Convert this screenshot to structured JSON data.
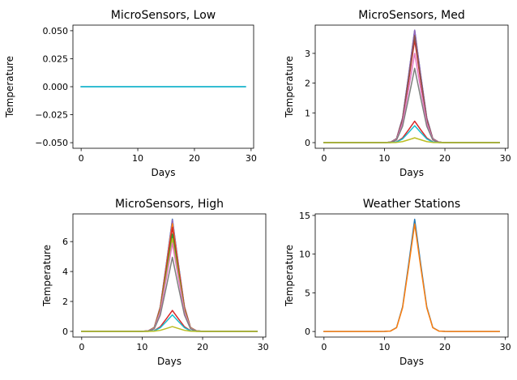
{
  "figure": {
    "background": "#ffffff"
  },
  "palette": [
    "#1f77b4",
    "#ff7f0e",
    "#2ca02c",
    "#d62728",
    "#9467bd",
    "#8c564b",
    "#e377c2",
    "#7f7f7f",
    "#bcbd22",
    "#17becf"
  ],
  "chart_data": [
    {
      "type": "line",
      "title": "MicroSensors, Low",
      "xlabel": "Days",
      "ylabel": "Temperature",
      "xlim": [
        -1.45,
        30.45
      ],
      "ylim": [
        -0.055,
        0.055
      ],
      "xticks": [
        0,
        10,
        20,
        30
      ],
      "yticks": [
        -0.05,
        -0.025,
        0.0,
        0.025,
        0.05
      ],
      "ytick_labels": [
        "−0.050",
        "−0.025",
        "0.000",
        "0.025",
        "0.050"
      ],
      "x_range": [
        0,
        29
      ],
      "series": [
        {
          "color_index": 0,
          "values": [
            0,
            0,
            0,
            0,
            0,
            0,
            0,
            0,
            0,
            0,
            0,
            0,
            0,
            0,
            0,
            0,
            0,
            0,
            0,
            0,
            0,
            0,
            0,
            0,
            0,
            0,
            0,
            0,
            0,
            0
          ]
        },
        {
          "color_index": 9,
          "values": [
            0,
            0,
            0,
            0,
            0,
            0,
            0,
            0,
            0,
            0,
            0,
            0,
            0,
            0,
            0,
            0,
            0,
            0,
            0,
            0,
            0,
            0,
            0,
            0,
            0,
            0,
            0,
            0,
            0,
            0
          ]
        }
      ]
    },
    {
      "type": "line",
      "title": "MicroSensors, Med",
      "xlabel": "Days",
      "ylabel": "Temperature",
      "xlim": [
        -1.45,
        30.45
      ],
      "ylim": [
        -0.19,
        3.95
      ],
      "xticks": [
        0,
        10,
        20,
        30
      ],
      "yticks": [
        0,
        1,
        2,
        3
      ],
      "ytick_labels": [
        "0",
        "1",
        "2",
        "3"
      ],
      "x_range": [
        0,
        29
      ],
      "profile": [
        0,
        0,
        0,
        0,
        0,
        0,
        0,
        0,
        0,
        0,
        0.0005,
        0.004,
        0.035,
        0.22,
        0.6,
        1.0,
        0.6,
        0.22,
        0.035,
        0.004,
        0.0005,
        0,
        0,
        0,
        0,
        0,
        0,
        0,
        0,
        0
      ],
      "series": [
        {
          "color_index": 0,
          "peak": 3.78
        },
        {
          "color_index": 1,
          "peak": 3.68
        },
        {
          "color_index": 2,
          "peak": 3.52
        },
        {
          "color_index": 3,
          "peak": 3.45
        },
        {
          "color_index": 4,
          "peak": 3.78
        },
        {
          "color_index": 5,
          "peak": 3.6
        },
        {
          "color_index": 6,
          "peak": 3.0
        },
        {
          "color_index": 7,
          "peak": 2.5
        },
        {
          "color_index": 3,
          "peak": 0.72
        },
        {
          "color_index": 9,
          "peak": 0.57
        },
        {
          "color_index": 8,
          "peak": 0.16
        }
      ]
    },
    {
      "type": "line",
      "title": "MicroSensors, High",
      "xlabel": "Days",
      "ylabel": "Temperature",
      "xlim": [
        -1.45,
        30.45
      ],
      "ylim": [
        -0.38,
        7.85
      ],
      "xticks": [
        0,
        10,
        20,
        30
      ],
      "yticks": [
        0,
        2,
        4,
        6
      ],
      "ytick_labels": [
        "0",
        "2",
        "4",
        "6"
      ],
      "x_range": [
        0,
        29
      ],
      "profile": [
        0,
        0,
        0,
        0,
        0,
        0,
        0,
        0,
        0,
        0,
        0.0005,
        0.004,
        0.035,
        0.22,
        0.6,
        1.0,
        0.6,
        0.22,
        0.035,
        0.004,
        0.0005,
        0,
        0,
        0,
        0,
        0,
        0,
        0,
        0,
        0
      ],
      "series": [
        {
          "color_index": 0,
          "peak": 7.5
        },
        {
          "color_index": 4,
          "peak": 7.45
        },
        {
          "color_index": 1,
          "peak": 7.2
        },
        {
          "color_index": 3,
          "peak": 6.95
        },
        {
          "color_index": 2,
          "peak": 6.5
        },
        {
          "color_index": 8,
          "peak": 6.2
        },
        {
          "color_index": 6,
          "peak": 5.9
        },
        {
          "color_index": 7,
          "peak": 4.95
        },
        {
          "color_index": 3,
          "peak": 1.4
        },
        {
          "color_index": 9,
          "peak": 1.1
        },
        {
          "color_index": 8,
          "peak": 0.32
        }
      ]
    },
    {
      "type": "line",
      "title": "Weather Stations",
      "xlabel": "Days",
      "ylabel": "Temperature",
      "xlim": [
        -1.45,
        30.45
      ],
      "ylim": [
        -0.72,
        15.2
      ],
      "xticks": [
        0,
        10,
        20,
        30
      ],
      "yticks": [
        0,
        5,
        10,
        15
      ],
      "ytick_labels": [
        "0",
        "5",
        "10",
        "15"
      ],
      "x_range": [
        0,
        29
      ],
      "profile": [
        0,
        0,
        0,
        0,
        0,
        0,
        0,
        0,
        0,
        0,
        0.0005,
        0.004,
        0.035,
        0.22,
        0.6,
        1.0,
        0.6,
        0.22,
        0.035,
        0.004,
        0.0005,
        0,
        0,
        0,
        0,
        0,
        0,
        0,
        0,
        0
      ],
      "series": [
        {
          "color_index": 0,
          "peak": 14.5
        },
        {
          "color_index": 1,
          "peak": 13.9
        }
      ]
    }
  ]
}
